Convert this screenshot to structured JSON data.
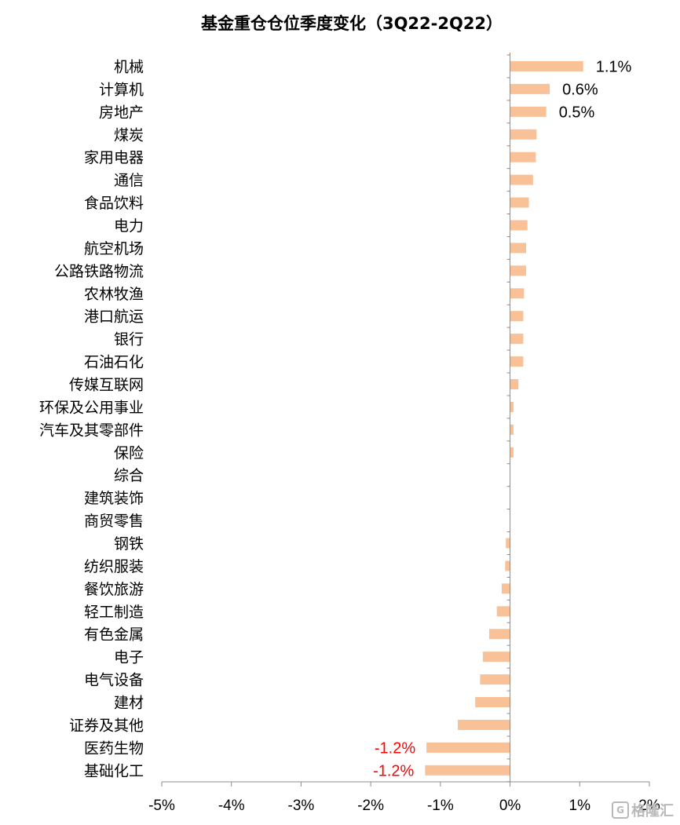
{
  "chart_data": {
    "type": "bar",
    "orientation": "horizontal",
    "title": "基金重仓仓位季度变化（3Q22-2Q22）",
    "xlabel": "",
    "ylabel": "",
    "xlim": [
      -5,
      2
    ],
    "x_ticks": [
      -5,
      -4,
      -3,
      -2,
      -1,
      0,
      1,
      2
    ],
    "x_tick_labels": [
      "-5%",
      "-4%",
      "-3%",
      "-2%",
      "-1%",
      "0%",
      "1%",
      "2%"
    ],
    "grid": false,
    "legend": "none",
    "bar_color": "#F8C197",
    "positive_label_color": "#000000",
    "negative_label_color": "#FF0000",
    "categories": [
      "机械",
      "计算机",
      "房地产",
      "煤炭",
      "家用电器",
      "通信",
      "食品饮料",
      "电力",
      "航空机场",
      "公路铁路物流",
      "农林牧渔",
      "港口航运",
      "银行",
      "石油石化",
      "传媒互联网",
      "环保及公用事业",
      "汽车及其零部件",
      "保险",
      "综合",
      "建筑装饰",
      "商贸零售",
      "钢铁",
      "纺织服装",
      "餐饮旅游",
      "轻工制造",
      "有色金属",
      "电子",
      "电气设备",
      "建材",
      "证券及其他",
      "医药生物",
      "基础化工"
    ],
    "values": [
      1.05,
      0.57,
      0.52,
      0.38,
      0.37,
      0.33,
      0.27,
      0.25,
      0.23,
      0.23,
      0.2,
      0.19,
      0.19,
      0.19,
      0.12,
      0.05,
      0.05,
      0.05,
      0.0,
      0.0,
      0.0,
      -0.06,
      -0.07,
      -0.12,
      -0.19,
      -0.3,
      -0.39,
      -0.43,
      -0.5,
      -0.75,
      -1.2,
      -1.22
    ],
    "data_labels": [
      {
        "index": 0,
        "text": "1.1%"
      },
      {
        "index": 1,
        "text": "0.6%"
      },
      {
        "index": 2,
        "text": "0.5%"
      },
      {
        "index": 30,
        "text": "-1.2%"
      },
      {
        "index": 31,
        "text": "-1.2%"
      }
    ]
  },
  "watermark": {
    "icon": "gelonghui-logo-icon",
    "glyph": "G",
    "text": "格隆汇"
  }
}
